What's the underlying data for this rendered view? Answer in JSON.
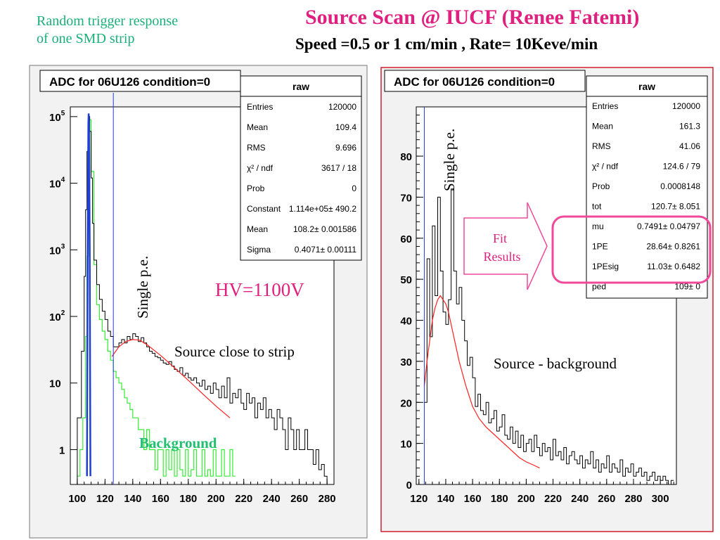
{
  "slide": {
    "intro_line1": "Random trigger response",
    "intro_line2": "of  one SMD strip",
    "title": "Source Scan  @ IUCF  (Renee Fatemi)",
    "subtitle": "Speed  =0.5 or 1 cm/min ,   Rate= 10Keve/min"
  },
  "colors": {
    "title": "#e0207f",
    "intro": "#1bb07a",
    "hv": "#e0207f",
    "background_series": "#33ee33",
    "main_series": "#000000",
    "fit_curve": "#ff2020",
    "pedestal_peak": "#1f3fd0",
    "marker_line": "#2a3ad0",
    "highlight": "#f0489a",
    "right_frame": "#d02030"
  },
  "left_panel": {
    "header": "ADC for 06U126 condition=0",
    "stats_title": "raw",
    "stats": [
      {
        "label": "Entries",
        "value": "120000"
      },
      {
        "label": "Mean",
        "value": "109.4"
      },
      {
        "label": "RMS",
        "value": "9.696"
      },
      {
        "label": "χ² / ndf",
        "value": "3617 / 18"
      },
      {
        "label": "Prob",
        "value": "0"
      },
      {
        "label": "Constant",
        "value": "1.114e+05± 490.2"
      },
      {
        "label": "Mean",
        "value": "108.2± 0.001586"
      },
      {
        "label": "Sigma",
        "value": "0.4071± 0.00111"
      }
    ],
    "annotations": {
      "single_pe": "Single p.e.",
      "hv": "HV=1100V",
      "source_close": "Source close to strip",
      "background": "Background"
    },
    "y_tick_labels": [
      {
        "base": "10",
        "exp": "5",
        "v": 100000
      },
      {
        "base": "10",
        "exp": "4",
        "v": 10000
      },
      {
        "base": "10",
        "exp": "3",
        "v": 1000
      },
      {
        "base": "10",
        "exp": "2",
        "v": 100
      },
      {
        "base": "10",
        "exp": "",
        "v": 10
      },
      {
        "base": "1",
        "exp": "",
        "v": 1
      }
    ]
  },
  "right_panel": {
    "header": "ADC for 06U126 condition=0",
    "stats_title": "raw",
    "stats": [
      {
        "label": "Entries",
        "value": "120000"
      },
      {
        "label": "Mean",
        "value": "161.3"
      },
      {
        "label": "RMS",
        "value": "41.06"
      },
      {
        "label": "χ² / ndf",
        "value": "124.6 / 79"
      },
      {
        "label": "Prob",
        "value": "0.0008148"
      },
      {
        "label": "tot",
        "value": "120.7± 8.051"
      },
      {
        "label": "mu",
        "value": "0.7491± 0.04797"
      },
      {
        "label": "1PE",
        "value": "28.64± 0.8261"
      },
      {
        "label": "1PEsig",
        "value": "11.03± 0.6482"
      },
      {
        "label": "ped",
        "value": "109±   0"
      }
    ],
    "annotations": {
      "single_pe": "Single p.e.",
      "fit_line1": "Fit",
      "fit_line2": "Results",
      "source_bg": "Source - background"
    }
  },
  "chart_data": [
    {
      "type": "histogram",
      "title": "ADC for 06U126 condition=0",
      "x_scale": "linear",
      "y_scale": "log",
      "xlim": [
        95,
        285
      ],
      "ylim": [
        0.3,
        140000
      ],
      "x_ticks": [
        100,
        120,
        140,
        160,
        180,
        200,
        220,
        240,
        260,
        280
      ],
      "marker_x": 126,
      "series": [
        {
          "name": "Source close to strip",
          "style": "step",
          "x": [
            95,
            100,
            103,
            105,
            106,
            107,
            108,
            109,
            110,
            111,
            112,
            114,
            116,
            118,
            120,
            122,
            124,
            126,
            128,
            130,
            132,
            134,
            136,
            138,
            140,
            142,
            144,
            146,
            148,
            150,
            152,
            154,
            156,
            158,
            160,
            162,
            164,
            166,
            168,
            170,
            172,
            174,
            176,
            178,
            180,
            182,
            184,
            186,
            188,
            190,
            192,
            194,
            196,
            198,
            200,
            202,
            204,
            206,
            208,
            210,
            212,
            214,
            216,
            218,
            220,
            222,
            224,
            226,
            228,
            230,
            232,
            234,
            236,
            238,
            240,
            242,
            244,
            246,
            248,
            250,
            252,
            254,
            256,
            258,
            260,
            262,
            264,
            266,
            268,
            270,
            272,
            274,
            276,
            278,
            280
          ],
          "y": [
            0.3,
            3,
            30,
            400,
            4000,
            30000,
            100000,
            60000,
            12000,
            2500,
            700,
            300,
            180,
            120,
            90,
            60,
            50,
            35,
            35,
            40,
            45,
            40,
            50,
            45,
            55,
            50,
            42,
            48,
            40,
            35,
            30,
            28,
            25,
            24,
            22,
            20,
            19,
            21,
            18,
            16,
            15,
            17,
            13,
            14,
            12,
            11,
            12,
            10,
            9,
            11,
            8,
            9,
            7,
            10,
            8,
            6,
            9,
            6,
            12,
            5,
            7,
            6,
            8,
            5,
            4,
            7,
            5,
            6,
            3,
            5,
            4,
            6,
            3,
            4,
            3,
            2,
            4,
            3,
            2,
            1,
            3,
            2,
            1,
            2,
            1,
            1,
            2,
            1,
            1,
            0.6,
            1,
            0.5,
            0.6,
            0.4,
            0.3
          ]
        },
        {
          "name": "Background",
          "style": "step",
          "x": [
            100,
            102,
            104,
            106,
            107,
            108,
            109,
            110,
            112,
            114,
            116,
            118,
            120,
            122,
            124,
            126,
            128,
            130,
            132,
            134,
            136,
            138,
            140,
            142,
            144,
            146,
            148,
            150,
            152,
            154,
            156,
            158,
            160,
            162,
            164,
            166,
            168,
            170,
            172,
            174,
            176,
            178,
            180,
            182,
            184,
            186,
            188,
            190,
            192,
            194,
            196,
            198,
            200,
            202,
            204,
            206,
            208,
            210,
            212
          ],
          "y": [
            0.4,
            1,
            3,
            50,
            800,
            8000,
            90000,
            15000,
            600,
            150,
            90,
            60,
            45,
            30,
            22,
            15,
            12,
            10,
            8,
            6,
            5,
            4,
            3,
            3,
            2,
            2,
            1,
            2,
            1,
            1,
            0.5,
            1,
            1,
            0.4,
            1,
            0.5,
            1,
            0.4,
            1,
            0.5,
            0.4,
            1,
            0.4,
            0.5,
            1,
            0.4,
            0.4,
            1,
            0.4,
            0.5,
            0.4,
            1,
            0.4,
            0.4,
            1,
            0.4,
            0.4,
            1,
            0.4
          ]
        },
        {
          "name": "pedestal fit",
          "style": "line",
          "x": [
            107,
            107.5,
            108,
            108.2,
            108.5,
            109,
            109.5
          ],
          "y": [
            0.4,
            1000,
            80000,
            111400,
            80000,
            1000,
            0.4
          ]
        },
        {
          "name": "fit",
          "style": "line",
          "x": [
            125,
            130,
            135,
            140,
            145,
            150,
            160,
            170,
            180,
            190,
            200,
            210
          ],
          "y": [
            25,
            35,
            42,
            45,
            44,
            38,
            26,
            17,
            11,
            7,
            4.5,
            3
          ]
        }
      ]
    },
    {
      "type": "histogram",
      "title": "ADC for 06U126 condition=0",
      "x_scale": "linear",
      "y_scale": "linear",
      "xlim": [
        118,
        312
      ],
      "ylim": [
        0,
        92
      ],
      "x_ticks": [
        120,
        140,
        160,
        180,
        200,
        220,
        240,
        260,
        280,
        300
      ],
      "y_ticks": [
        0,
        10,
        20,
        30,
        40,
        50,
        60,
        70,
        80
      ],
      "marker_x": 124,
      "series": [
        {
          "name": "Source - background",
          "style": "step",
          "x": [
            124,
            126,
            128,
            130,
            132,
            134,
            136,
            138,
            140,
            142,
            144,
            146,
            148,
            150,
            152,
            154,
            156,
            158,
            160,
            162,
            164,
            166,
            168,
            170,
            172,
            174,
            176,
            178,
            180,
            182,
            184,
            186,
            188,
            190,
            192,
            194,
            196,
            198,
            200,
            202,
            204,
            206,
            208,
            210,
            212,
            214,
            216,
            218,
            220,
            222,
            224,
            226,
            228,
            230,
            232,
            234,
            236,
            238,
            240,
            242,
            244,
            246,
            248,
            250,
            252,
            254,
            256,
            258,
            260,
            262,
            264,
            266,
            268,
            270,
            272,
            274,
            276,
            278,
            280,
            282,
            284,
            286,
            288,
            290,
            292,
            294,
            296,
            298,
            300,
            302,
            304,
            306,
            308
          ],
          "y": [
            20,
            55,
            36,
            63,
            46,
            70,
            52,
            42,
            39,
            45,
            72,
            52,
            44,
            48,
            40,
            35,
            29,
            31,
            26,
            19,
            22,
            18,
            17,
            20,
            15,
            16,
            18,
            13,
            14,
            17,
            12,
            11,
            14,
            10,
            13,
            9,
            12,
            8,
            10,
            11,
            8,
            12,
            9,
            7,
            10,
            8,
            9,
            6,
            11,
            7,
            8,
            6,
            9,
            5,
            7,
            8,
            6,
            5,
            7,
            4,
            6,
            5,
            8,
            4,
            6,
            3,
            5,
            4,
            7,
            3,
            5,
            4,
            3,
            6,
            2,
            4,
            3,
            5,
            2,
            3,
            4,
            2,
            3,
            1,
            2,
            3,
            1,
            2,
            1,
            2,
            1,
            0,
            1
          ]
        },
        {
          "name": "fit",
          "style": "line",
          "x": [
            124,
            126,
            128,
            130,
            132,
            134,
            136,
            138,
            140,
            142,
            144,
            146,
            148,
            150,
            155,
            160,
            165,
            170,
            175,
            180,
            185,
            190,
            195,
            200,
            205,
            210
          ],
          "y": [
            24,
            30,
            35,
            40,
            43,
            45,
            46,
            45,
            44,
            42,
            39,
            36,
            33,
            30,
            24,
            19,
            16,
            14,
            12.5,
            11,
            9.5,
            8,
            6.5,
            5.5,
            4.8,
            4
          ]
        }
      ]
    }
  ]
}
